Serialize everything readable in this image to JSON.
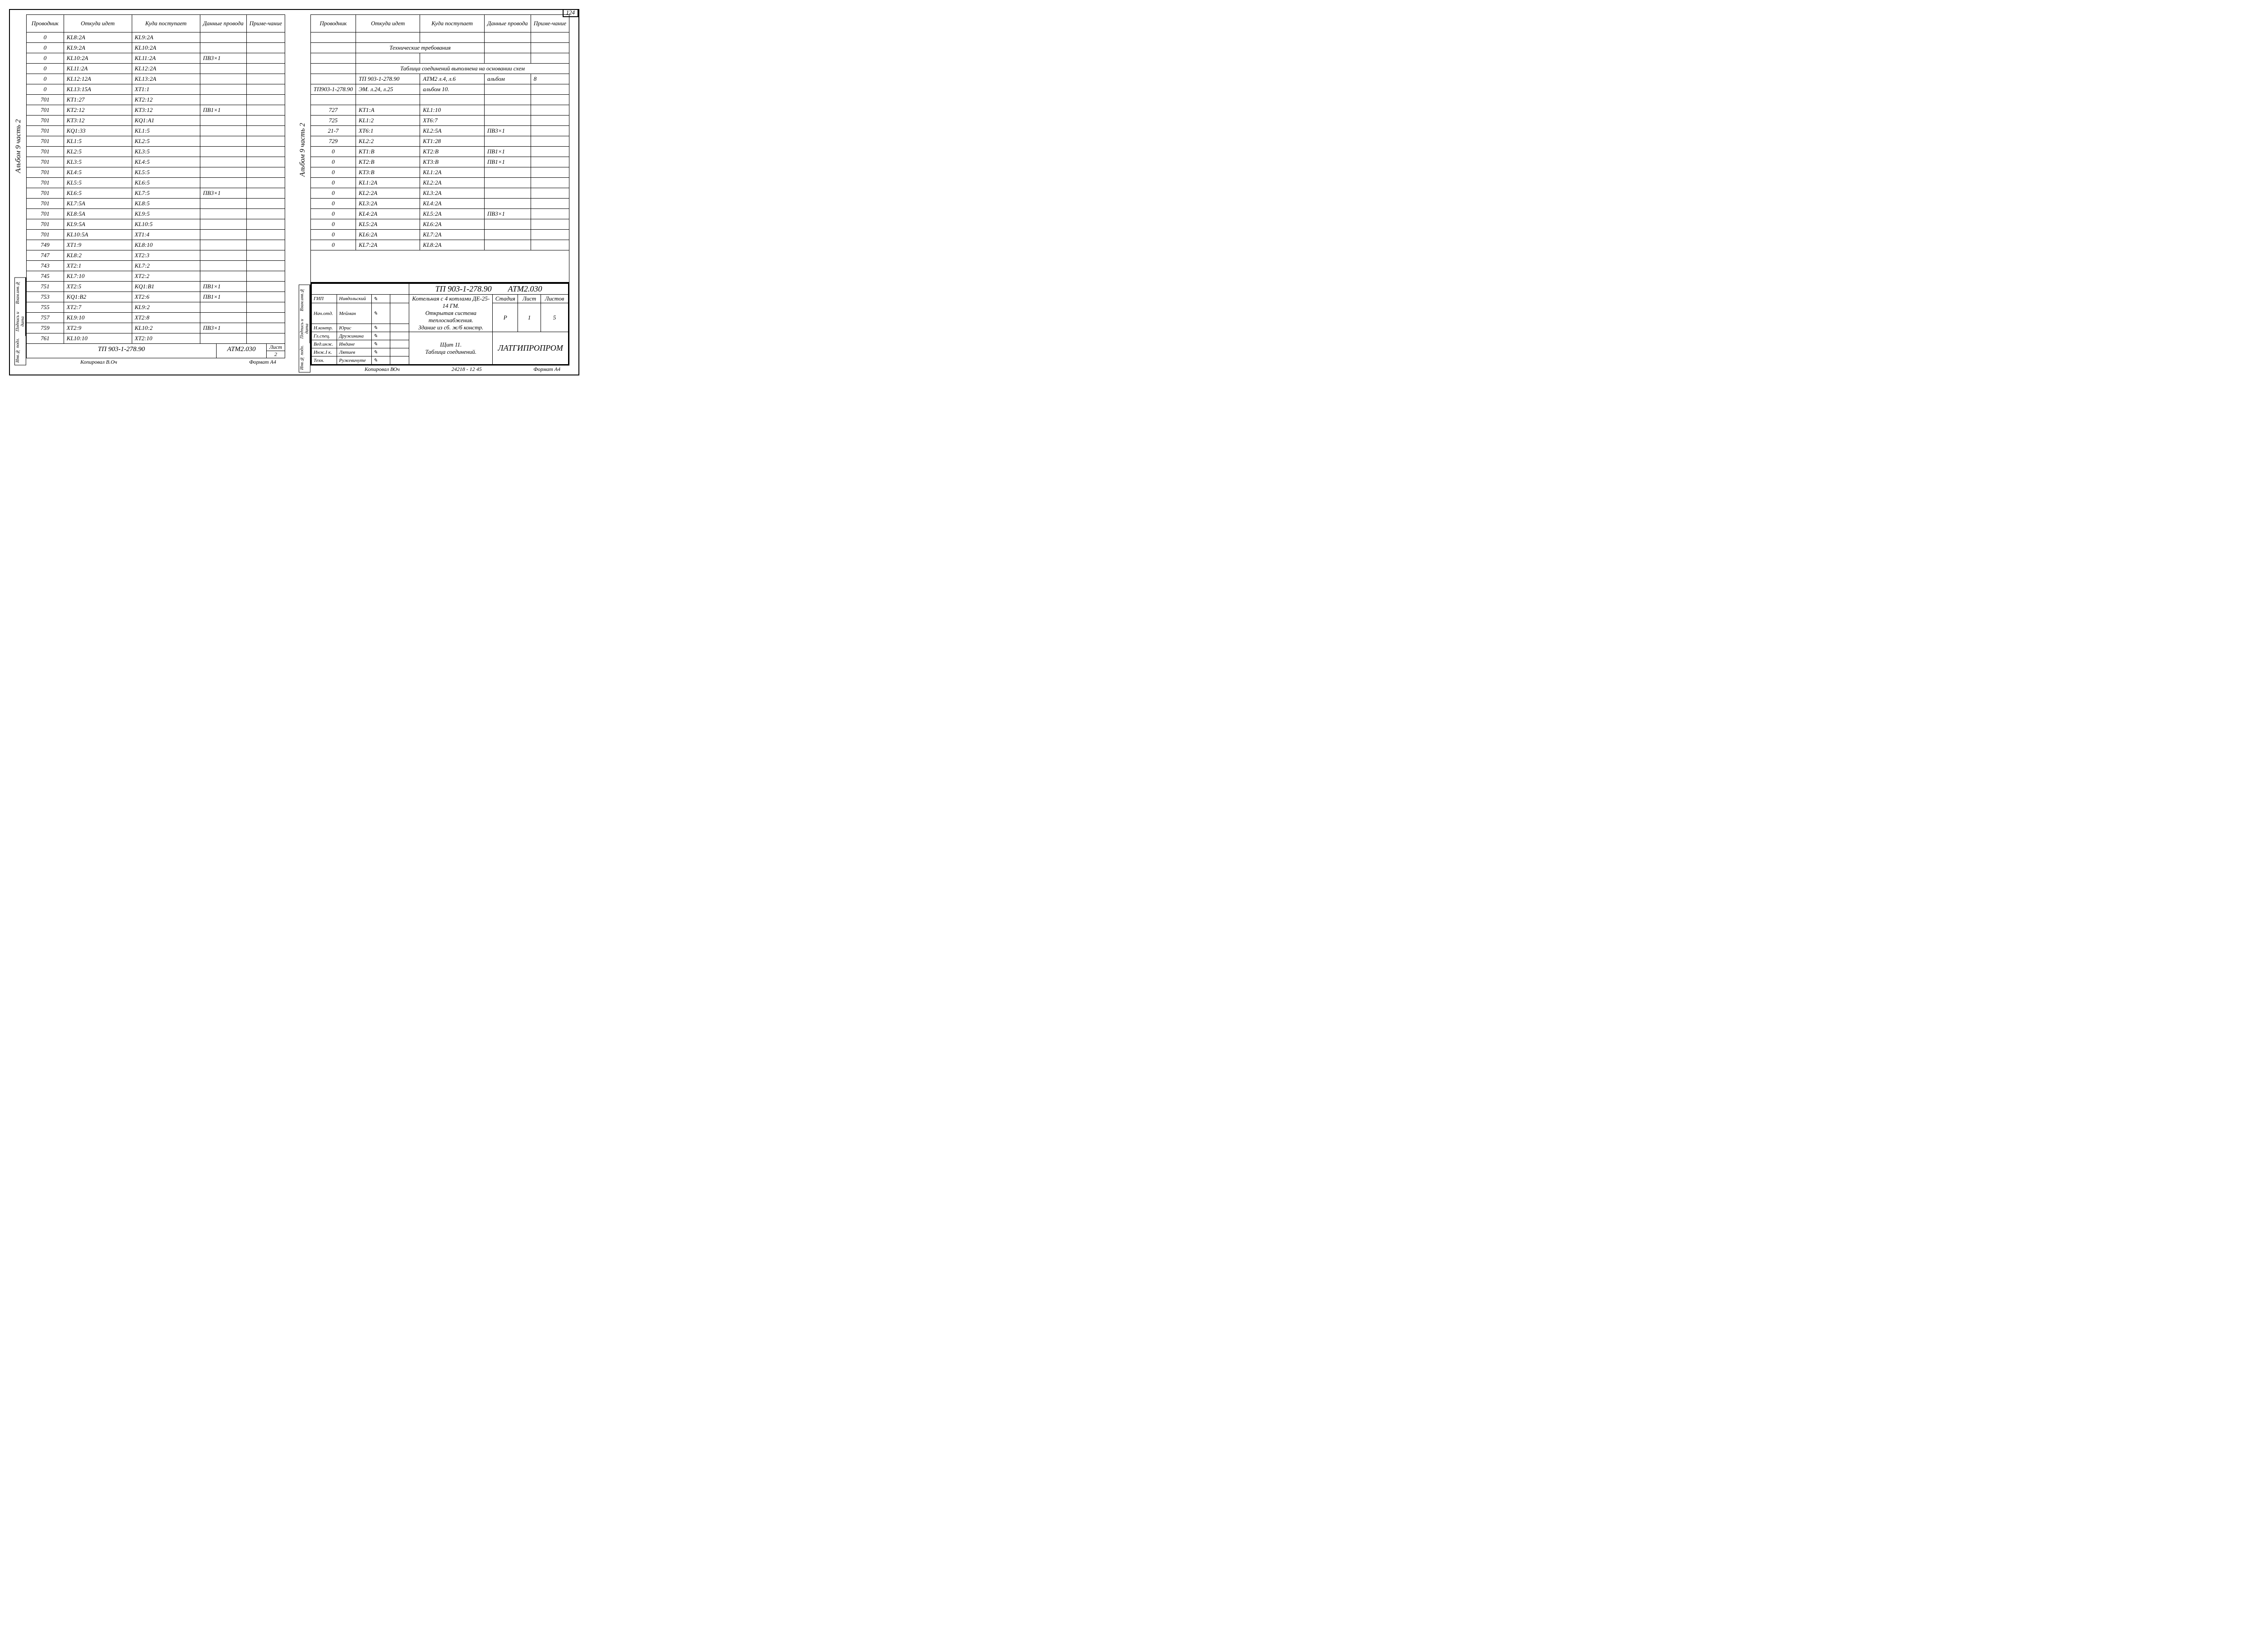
{
  "page_number": "124",
  "album_label": "Альбом 9 часть 2",
  "side_labels": [
    "Взам.инв.№",
    "Подпись и дата",
    "Инв.№ подл."
  ],
  "headers": {
    "c1": "Проводник",
    "c2": "Откуда идет",
    "c3": "Куда поступает",
    "c4": "Данные провода",
    "c5": "Приме-чание"
  },
  "left_rows": [
    {
      "p": "0",
      "f": "KL8:2A",
      "t": "KL9:2A",
      "d": "",
      "n": ""
    },
    {
      "p": "0",
      "f": "KL9:2A",
      "t": "KL10:2A",
      "d": "",
      "n": ""
    },
    {
      "p": "0",
      "f": "KL10:2A",
      "t": "KL11:2A",
      "d": "ПВ3×1",
      "n": "",
      "brace_end": true
    },
    {
      "p": "0",
      "f": "KL11:2A",
      "t": "KL12:2A",
      "d": "",
      "n": ""
    },
    {
      "p": "0",
      "f": "KL12:12A",
      "t": "KL13:2A",
      "d": "",
      "n": ""
    },
    {
      "p": "0",
      "f": "KL13:15A",
      "t": "XT1:1",
      "d": "",
      "n": ""
    },
    {
      "p": "701",
      "f": "KT1:27",
      "t": "KT2:12",
      "d": "",
      "n": ""
    },
    {
      "p": "701",
      "f": "KT2:12",
      "t": "KT3:12",
      "d": "ПВ1×1",
      "n": ""
    },
    {
      "p": "701",
      "f": "KT3:12",
      "t": "KQ1:A1",
      "d": "",
      "n": ""
    },
    {
      "p": "701",
      "f": "KQ1:33",
      "t": "KL1:5",
      "d": "",
      "n": ""
    },
    {
      "p": "701",
      "f": "KL1:5",
      "t": "KL2:5",
      "d": "",
      "n": ""
    },
    {
      "p": "701",
      "f": "KL2:5",
      "t": "KL3:5",
      "d": "",
      "n": ""
    },
    {
      "p": "701",
      "f": "KL3:5",
      "t": "KL4:5",
      "d": "",
      "n": ""
    },
    {
      "p": "701",
      "f": "KL4:5",
      "t": "KL5:5",
      "d": "",
      "n": ""
    },
    {
      "p": "701",
      "f": "KL5:5",
      "t": "KL6:5",
      "d": "",
      "n": ""
    },
    {
      "p": "701",
      "f": "KL6:5",
      "t": "KL7:5",
      "d": "ПВ3×1",
      "n": ""
    },
    {
      "p": "701",
      "f": "KL7:5A",
      "t": "KL8:5",
      "d": "",
      "n": ""
    },
    {
      "p": "701",
      "f": "KL8:5A",
      "t": "KL9:5",
      "d": "",
      "n": ""
    },
    {
      "p": "701",
      "f": "KL9:5A",
      "t": "KL10:5",
      "d": "",
      "n": ""
    },
    {
      "p": "701",
      "f": "KL10:5A",
      "t": "XT1:4",
      "d": "",
      "n": ""
    },
    {
      "p": "749",
      "f": "XT1:9",
      "t": "KL8:10",
      "d": "",
      "n": ""
    },
    {
      "p": "747",
      "f": "KL8:2",
      "t": "XT2:3",
      "d": "",
      "n": ""
    },
    {
      "p": "743",
      "f": "XT2:1",
      "t": "KL7:2",
      "d": "",
      "n": ""
    },
    {
      "p": "745",
      "f": "KL7:10",
      "t": "XT2:2",
      "d": "",
      "n": ""
    },
    {
      "p": "751",
      "f": "XT2:5",
      "t": "KQ1:B1",
      "d": "ПВ1×1",
      "n": ""
    },
    {
      "p": "753",
      "f": "KQ1:B2",
      "t": "XT2:6",
      "d": "ПВ1×1",
      "n": ""
    },
    {
      "p": "755",
      "f": "XT2:7",
      "t": "KL9:2",
      "d": "",
      "n": ""
    },
    {
      "p": "757",
      "f": "KL9:10",
      "t": "XT2:8",
      "d": "",
      "n": "",
      "brace_start": true
    },
    {
      "p": "759",
      "f": "XT2:9",
      "t": "KL10:2",
      "d": "ПВ3×1",
      "n": "",
      "brace_mid": true
    },
    {
      "p": "761",
      "f": "KL10:10",
      "t": "XT2:10",
      "d": "",
      "n": ""
    }
  ],
  "left_footer": {
    "project": "ТП 903-1-278.90",
    "code": "АТМ2.030",
    "list_label": "Лист",
    "list_no": "2",
    "copied_by": "Копировал В.Оч",
    "format": "Формат А4"
  },
  "right_notes": [
    {
      "type": "empty"
    },
    {
      "type": "title",
      "text": "Технические требования"
    },
    {
      "type": "empty"
    },
    {
      "type": "note_full",
      "text": "Таблица соединений выполнена на основании схем"
    },
    {
      "p": "",
      "f": "ТП 903-1-278.90",
      "t": "АТМ2    л.4, л.6",
      "d": "альбом",
      "n": "8"
    },
    {
      "p": "ТП903-1-278.90",
      "f": "ЭМ. л.24, л.25",
      "t": "альбом 10.",
      "d": "",
      "n": ""
    },
    {
      "type": "empty"
    },
    {
      "p": "727",
      "f": "KT1:A",
      "t": "KL1:10",
      "d": "",
      "n": ""
    },
    {
      "p": "725",
      "f": "KL1:2",
      "t": "XT6:7",
      "d": "",
      "n": ""
    },
    {
      "p": "21-7",
      "f": "XT6:1",
      "t": "KL2:5A",
      "d": "ПВ3×1",
      "n": ""
    },
    {
      "p": "729",
      "f": "KL2:2",
      "t": "KT1:28",
      "d": "",
      "n": ""
    },
    {
      "p": "0",
      "f": "KT1:B",
      "t": "KT2:B",
      "d": "ПВ1×1",
      "n": ""
    },
    {
      "p": "0",
      "f": "KT2:B",
      "t": "KT3:B",
      "d": "ПВ1×1",
      "n": ""
    },
    {
      "p": "0",
      "f": "KT3:B",
      "t": "KL1:2A",
      "d": "",
      "n": ""
    },
    {
      "p": "0",
      "f": "KL1:2A",
      "t": "KL2:2A",
      "d": "",
      "n": ""
    },
    {
      "p": "0",
      "f": "KL2:2A",
      "t": "KL3:2A",
      "d": "",
      "n": ""
    },
    {
      "p": "0",
      "f": "KL3:2A",
      "t": "KL4:2A",
      "d": "",
      "n": ""
    },
    {
      "p": "0",
      "f": "KL4:2A",
      "t": "KL5:2A",
      "d": "ПВ3×1",
      "n": ""
    },
    {
      "p": "0",
      "f": "KL5:2A",
      "t": "KL6:2A",
      "d": "",
      "n": ""
    },
    {
      "p": "0",
      "f": "KL6:2A",
      "t": "KL7:2A",
      "d": "",
      "n": ""
    },
    {
      "p": "0",
      "f": "KL7:2A",
      "t": "KL8:2A",
      "d": "",
      "n": ""
    }
  ],
  "titleblock": {
    "project": "ТП 903-1-278.90",
    "code": "АТМ2.030",
    "roles": [
      {
        "r": "ГИП",
        "n": "Нивдольский"
      },
      {
        "r": "Нач.отд.",
        "n": "Мейман"
      },
      {
        "r": "Н.контр.",
        "n": "Юрис"
      },
      {
        "r": "Гл.спец.",
        "n": "Дружинина"
      },
      {
        "r": "Вед.инж.",
        "n": "Индане"
      },
      {
        "r": "Инж.I к.",
        "n": "Лятиев"
      },
      {
        "r": "Техн.",
        "n": "Ружевичуте"
      }
    ],
    "desc1": "Котельная с 4 котлами ДЕ-25-14 ГМ.",
    "desc2": "Открытая система теплоснабжения.",
    "desc3": "Здание из сб. ж/б констр.",
    "title1": "Щит 11.",
    "title2": "Таблица соединений.",
    "org": "ЛАТГИПРОПРОМ",
    "stage_h": "Стадия",
    "list_h": "Лист",
    "lists_h": "Листов",
    "stage": "Р",
    "list": "1",
    "lists": "5",
    "copied": "Копировал ВОч",
    "archno": "24218 - 12  45",
    "format": "Формат А4"
  }
}
